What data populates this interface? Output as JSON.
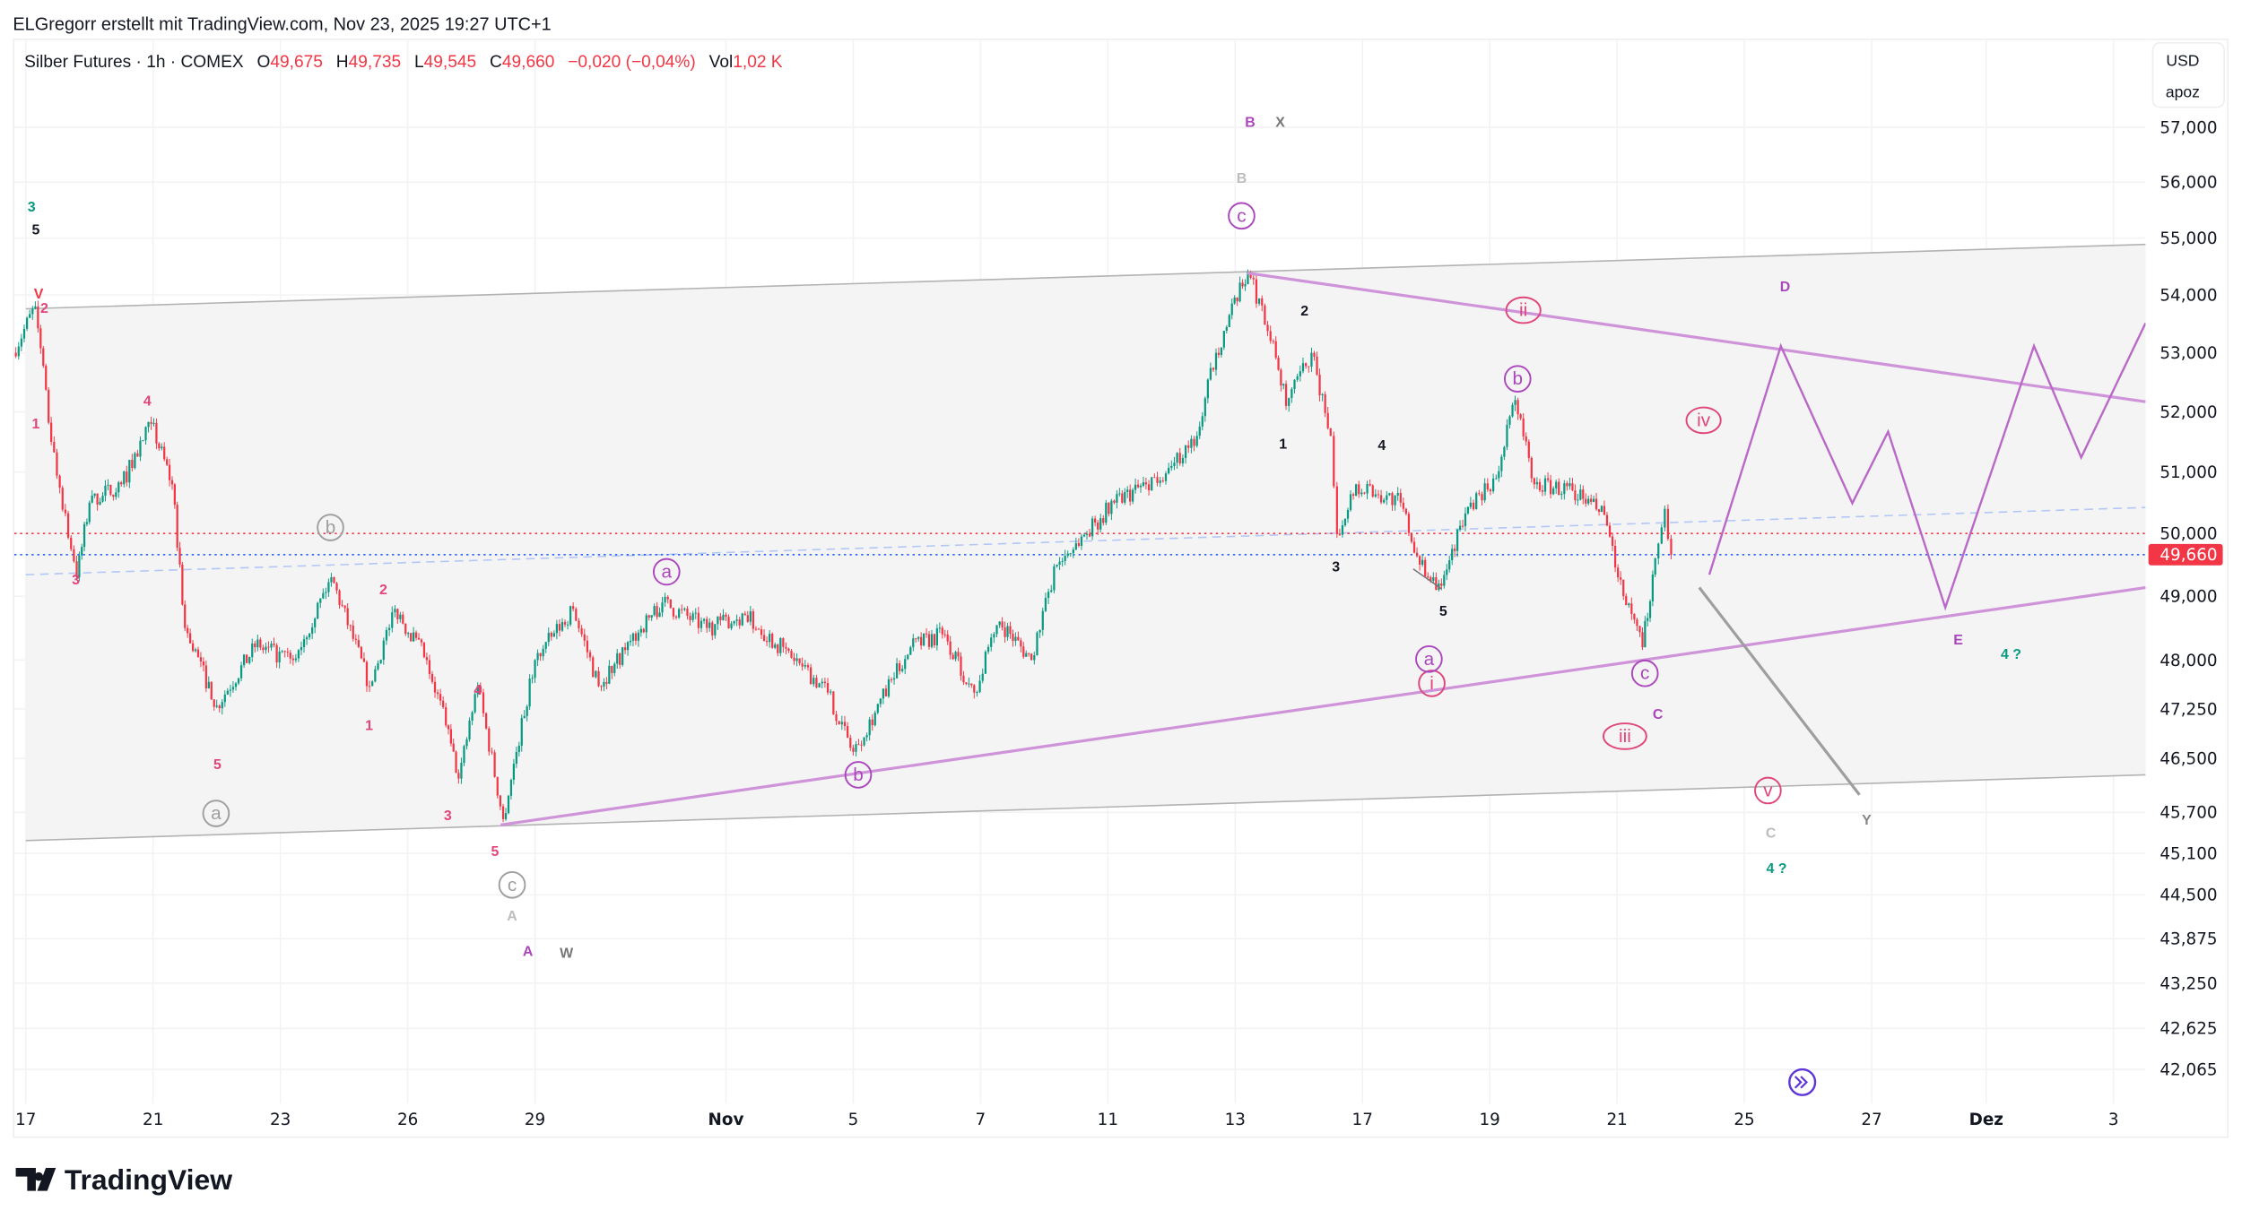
{
  "attribution": "ELGregorr erstellt mit TradingView.com, Nov 23, 2025 19:27 UTC+1",
  "legend": {
    "symbol": "Silber Futures · 1h · COMEX",
    "o_label": "O",
    "o": "49,675",
    "h_label": "H",
    "h": "49,735",
    "l_label": "L",
    "l": "49,545",
    "c_label": "C",
    "c": "49,660",
    "change": "−0,020 (−0,04%)",
    "vol_label": "Vol",
    "vol": "1,02 K"
  },
  "currency": "USD",
  "unit": "apoz",
  "last_price_label": "49,660",
  "logo_text": "TradingView",
  "colors": {
    "up": "#089981",
    "down": "#f23645",
    "wave_purple": "#ab47bc",
    "wave_red": "#e91e63",
    "green": "#089981"
  },
  "chart_data": {
    "type": "candlestick",
    "title": "Silber Futures · 1h · COMEX",
    "scale": "log",
    "ylim": [
      41700,
      57600
    ],
    "yticks": [
      "57,000",
      "56,000",
      "55,000",
      "54,000",
      "53,000",
      "52,000",
      "51,000",
      "50,000",
      "49,000",
      "48,000",
      "47,250",
      "46,500",
      "45,700",
      "45,100",
      "44,500",
      "43,875",
      "43,250",
      "42,625",
      "42,065"
    ],
    "ytick_values": [
      57000,
      56000,
      55000,
      54000,
      53000,
      52000,
      51000,
      50000,
      49000,
      48000,
      47250,
      46500,
      45700,
      45100,
      44500,
      43875,
      43250,
      42625,
      42065
    ],
    "xticks": [
      "17",
      "21",
      "23",
      "26",
      "29",
      "Nov",
      "5",
      "7",
      "11",
      "13",
      "17",
      "19",
      "21",
      "25",
      "27",
      "Dez",
      "3"
    ],
    "xtick_days": [
      0,
      2,
      4,
      6,
      8,
      11,
      13,
      15,
      17,
      19,
      21,
      23,
      25,
      27,
      29,
      30.8,
      32.8
    ],
    "price_path": [
      [
        -0.2,
        53000
      ],
      [
        0.15,
        53800
      ],
      [
        0.4,
        51500
      ],
      [
        0.8,
        49300
      ],
      [
        1.0,
        50500
      ],
      [
        1.5,
        50800
      ],
      [
        1.97,
        51800
      ],
      [
        2.3,
        50800
      ],
      [
        2.5,
        48500
      ],
      [
        3.0,
        47300
      ],
      [
        3.6,
        48200
      ],
      [
        4.2,
        48000
      ],
      [
        4.8,
        49300
      ],
      [
        5.4,
        47600
      ],
      [
        5.8,
        48800
      ],
      [
        6.3,
        48000
      ],
      [
        6.6,
        47000
      ],
      [
        6.8,
        46200
      ],
      [
        7.1,
        47600
      ],
      [
        7.5,
        45600
      ],
      [
        8.0,
        48000
      ],
      [
        8.6,
        48800
      ],
      [
        9.0,
        47600
      ],
      [
        9.5,
        48300
      ],
      [
        10.0,
        48900
      ],
      [
        10.7,
        48500
      ],
      [
        11.3,
        48700
      ],
      [
        12.2,
        47900
      ],
      [
        12.6,
        47500
      ],
      [
        13.0,
        46600
      ],
      [
        13.9,
        48200
      ],
      [
        14.4,
        48400
      ],
      [
        14.9,
        47500
      ],
      [
        15.3,
        48600
      ],
      [
        15.8,
        48000
      ],
      [
        16.2,
        49500
      ],
      [
        17.1,
        50500
      ],
      [
        17.6,
        50800
      ],
      [
        18.0,
        51100
      ],
      [
        18.4,
        51600
      ],
      [
        18.7,
        53000
      ],
      [
        19.2,
        54400
      ],
      [
        19.6,
        53200
      ],
      [
        19.8,
        52100
      ],
      [
        20.2,
        53000
      ],
      [
        20.5,
        51600
      ],
      [
        20.6,
        50000
      ],
      [
        20.9,
        50800
      ],
      [
        21.6,
        50500
      ],
      [
        21.9,
        49500
      ],
      [
        22.2,
        49200
      ],
      [
        22.7,
        50500
      ],
      [
        23.1,
        50900
      ],
      [
        23.4,
        52200
      ],
      [
        23.7,
        50800
      ],
      [
        24.3,
        50700
      ],
      [
        24.8,
        50300
      ],
      [
        25.1,
        49000
      ],
      [
        25.4,
        48200
      ],
      [
        25.6,
        49600
      ],
      [
        25.75,
        50400
      ],
      [
        25.85,
        49660
      ]
    ],
    "horizontal_lines": [
      {
        "price": 50000,
        "style": "red-dotted"
      },
      {
        "price": 49660,
        "style": "blue-dotted"
      }
    ],
    "wave_labels": [
      "3",
      "5",
      "V",
      "2",
      "1",
      "3",
      "4",
      "5",
      "2",
      "1",
      "4",
      "3",
      "5",
      "b",
      "a",
      "c",
      "A",
      "A",
      "W",
      "a",
      "b",
      "B",
      "X",
      "B",
      "c",
      "2",
      "1",
      "4",
      "3",
      "5",
      "ii",
      "iv",
      "i",
      "iii",
      "v",
      "b",
      "a",
      "c",
      "C",
      "D",
      "E",
      "4 ?",
      "4 ?",
      "C",
      "Y"
    ]
  }
}
